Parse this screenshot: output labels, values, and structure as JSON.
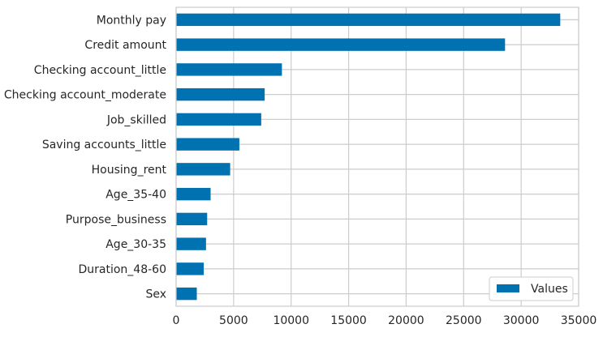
{
  "chart_data": {
    "type": "bar",
    "orientation": "horizontal",
    "categories": [
      "Monthly pay",
      "Credit amount",
      "Checking account_little",
      "Checking account_moderate",
      "Job_skilled",
      "Saving accounts_little",
      "Housing_rent",
      "Age_35-40",
      "Purpose_business",
      "Age_30-35",
      "Duration_48-60",
      "Sex"
    ],
    "series": [
      {
        "name": "Values",
        "values": [
          33400,
          28600,
          9200,
          7700,
          7400,
          5500,
          4700,
          3000,
          2700,
          2600,
          2400,
          1800
        ],
        "color": "#0072b2"
      }
    ],
    "xlim": [
      0,
      35000
    ],
    "xticks": [
      0,
      5000,
      10000,
      15000,
      20000,
      25000,
      30000,
      35000
    ],
    "grid": true,
    "legend": "lower right"
  },
  "legend": {
    "label": "Values"
  }
}
